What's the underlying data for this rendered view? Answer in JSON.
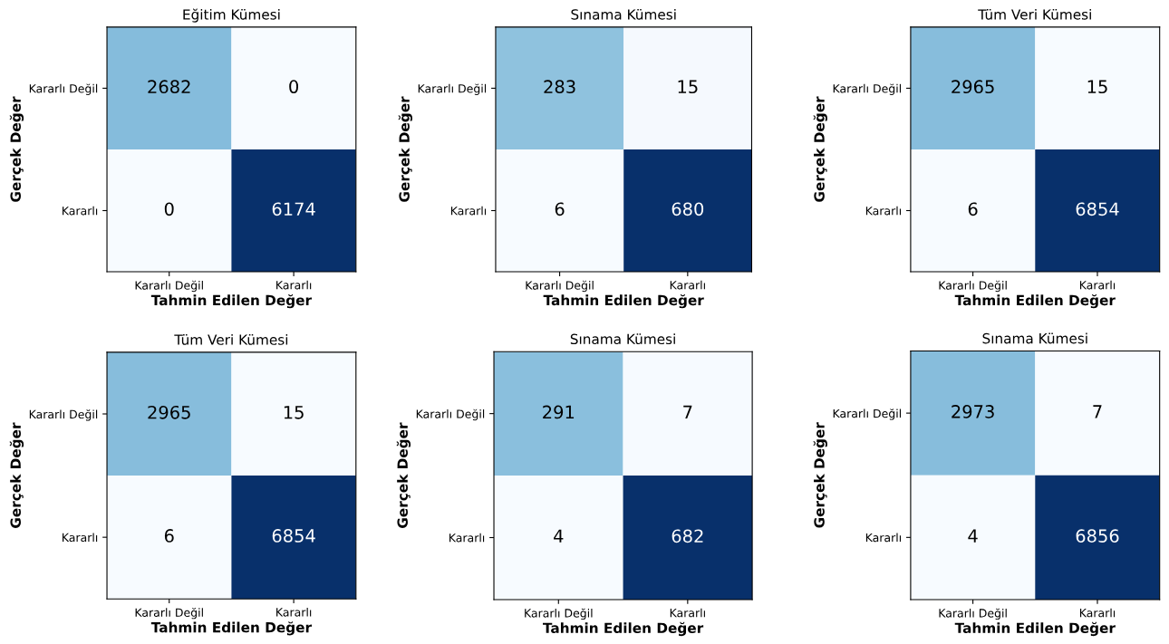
{
  "chart_data": [
    {
      "type": "heatmap",
      "title": "Eğitim Kümesi",
      "xlabel": "Tahmin Edilen Değer",
      "ylabel": "Gerçek Değer",
      "categories": [
        "Kararlı Değil",
        "Kararlı"
      ],
      "y_categories": [
        "Kararlı Değil",
        "Kararlı"
      ],
      "cells": [
        [
          2682,
          0
        ],
        [
          0,
          6174
        ]
      ],
      "data_labels": true
    },
    {
      "type": "heatmap",
      "title": "Sınama Kümesi",
      "xlabel": "Tahmin Edilen Değer",
      "ylabel": "Gerçek Değer",
      "categories": [
        "Kararlı Değil",
        "Kararlı"
      ],
      "y_categories": [
        "Kararlı Değil",
        "Kararlı"
      ],
      "cells": [
        [
          283,
          15
        ],
        [
          6,
          680
        ]
      ],
      "data_labels": true
    },
    {
      "type": "heatmap",
      "title": "Tüm Veri Kümesi",
      "xlabel": "Tahmin Edilen Değer",
      "ylabel": "Gerçek Değer",
      "categories": [
        "Kararlı Değil",
        "Kararlı"
      ],
      "y_categories": [
        "Kararlı Değil",
        "Kararlı"
      ],
      "cells": [
        [
          2965,
          15
        ],
        [
          6,
          6854
        ]
      ],
      "data_labels": true
    },
    {
      "type": "heatmap",
      "title": "Tüm Veri Kümesi",
      "xlabel": "Tahmin Edilen Değer",
      "ylabel": "Gerçek Değer",
      "categories": [
        "Kararlı Değil",
        "Kararlı"
      ],
      "y_categories": [
        "Kararlı Değil",
        "Kararlı"
      ],
      "cells": [
        [
          2965,
          15
        ],
        [
          6,
          6854
        ]
      ],
      "data_labels": true
    },
    {
      "type": "heatmap",
      "title": "Sınama Kümesi",
      "xlabel": "Tahmin Edilen Değer",
      "ylabel": "Gerçek Değer",
      "categories": [
        "Kararlı Değil",
        "Kararlı"
      ],
      "y_categories": [
        "Kararlı Değil",
        "Kararlı"
      ],
      "cells": [
        [
          291,
          7
        ],
        [
          4,
          682
        ]
      ],
      "data_labels": true
    },
    {
      "type": "heatmap",
      "title": "Sınama Kümesi",
      "xlabel": "Tahmin Edilen Değer",
      "ylabel": "Gerçek Değer",
      "categories": [
        "Kararlı Değil",
        "Kararlı"
      ],
      "y_categories": [
        "Kararlı Değil",
        "Kararlı"
      ],
      "cells": [
        [
          2973,
          7
        ],
        [
          4,
          6856
        ]
      ],
      "data_labels": true
    }
  ]
}
